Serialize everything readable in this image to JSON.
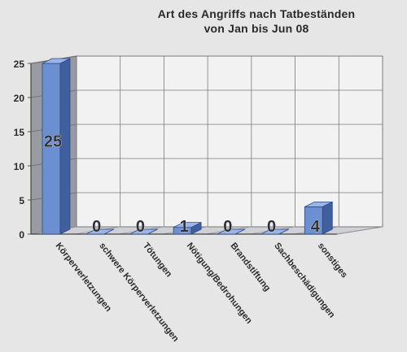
{
  "chart_data": {
    "type": "bar",
    "title_lines": [
      "Art des Angriffs nach Tatbeständen",
      "von Jan bis Jun 08"
    ],
    "categories": [
      "Körperverletzungen",
      "schwere Körperverletzungen",
      "Tötungen",
      "Nötigung/Bedrohungen",
      "Brandstiftung",
      "Sachbeschädigungen",
      "sonstiges"
    ],
    "values": [
      25,
      0,
      0,
      1,
      0,
      0,
      4
    ],
    "data_labels": [
      "25",
      "0",
      "0",
      "1",
      "0",
      "0",
      "4"
    ],
    "y_ticks": [
      "0",
      "5",
      "10",
      "15",
      "20",
      "25"
    ],
    "ylim": [
      0,
      25
    ],
    "xlabel": "",
    "ylabel": "",
    "grid": true,
    "legend": "none",
    "style": "3d",
    "colors": {
      "bar_front": "#6b8fd1",
      "bar_side": "#3f5f9e",
      "bar_top": "#9bb5e6",
      "wall": "#9a9aa2",
      "floor": "#cfcfd6",
      "grid": "#7a7a7a",
      "text": "#2a2a2a"
    }
  }
}
